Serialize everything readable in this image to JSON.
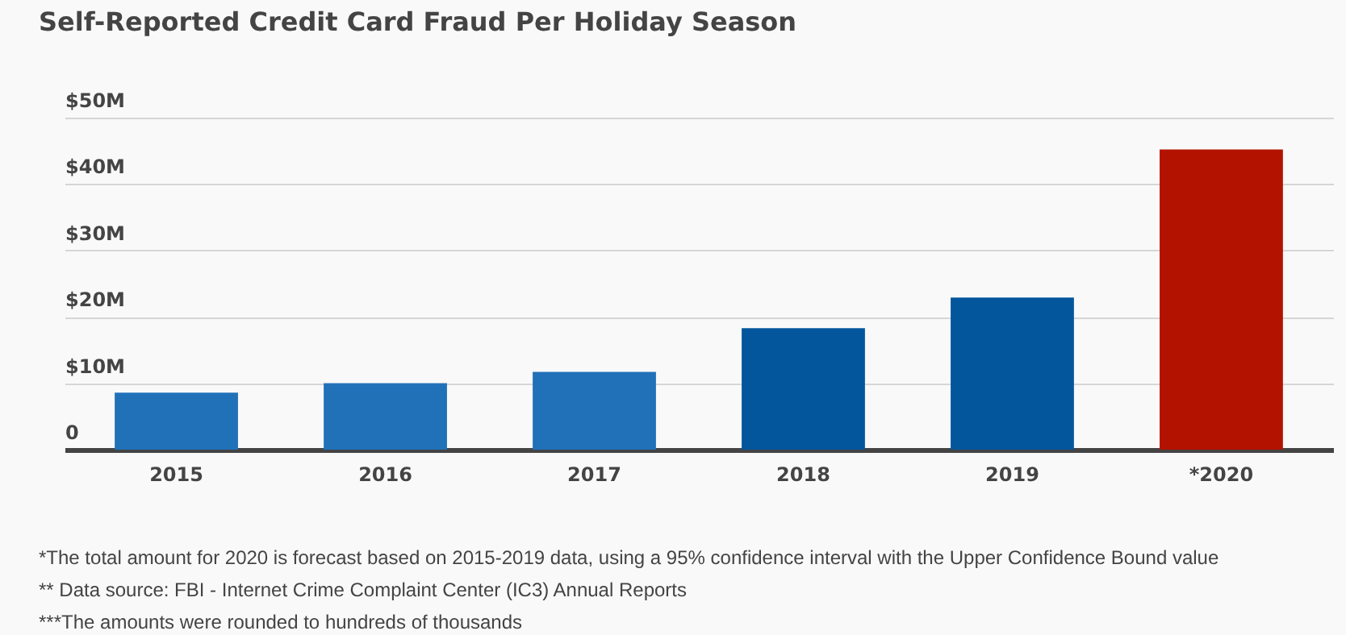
{
  "chart_data": {
    "type": "bar",
    "title": "Self-Reported Credit Card Fraud Per Holiday Season",
    "categories": [
      "2015",
      "2016",
      "2017",
      "2018",
      "2019",
      "*2020"
    ],
    "values": [
      8.6,
      10.0,
      11.7,
      18.3,
      22.9,
      45.2
    ],
    "colors": [
      "#2171b9",
      "#2171b9",
      "#2171b9",
      "#03569c",
      "#03569c",
      "#b31200"
    ],
    "ylim": [
      0,
      50
    ],
    "yticks": [
      {
        "value": 0,
        "label": "0"
      },
      {
        "value": 10,
        "label": "$10M"
      },
      {
        "value": 20,
        "label": "$20M"
      },
      {
        "value": 30,
        "label": "$30M"
      },
      {
        "value": 40,
        "label": "$40M"
      },
      {
        "value": 50,
        "label": "$50M"
      }
    ],
    "grid": "y",
    "annotations": [
      "*The total amount for 2020 is forecast based on 2015-2019 data, using a 95% confidence interval with the Upper Confidence Bound value",
      "** Data source: FBI - Internet Crime Complaint Center (IC3) Annual Reports",
      "***The amounts were rounded to hundreds of thousands"
    ]
  }
}
